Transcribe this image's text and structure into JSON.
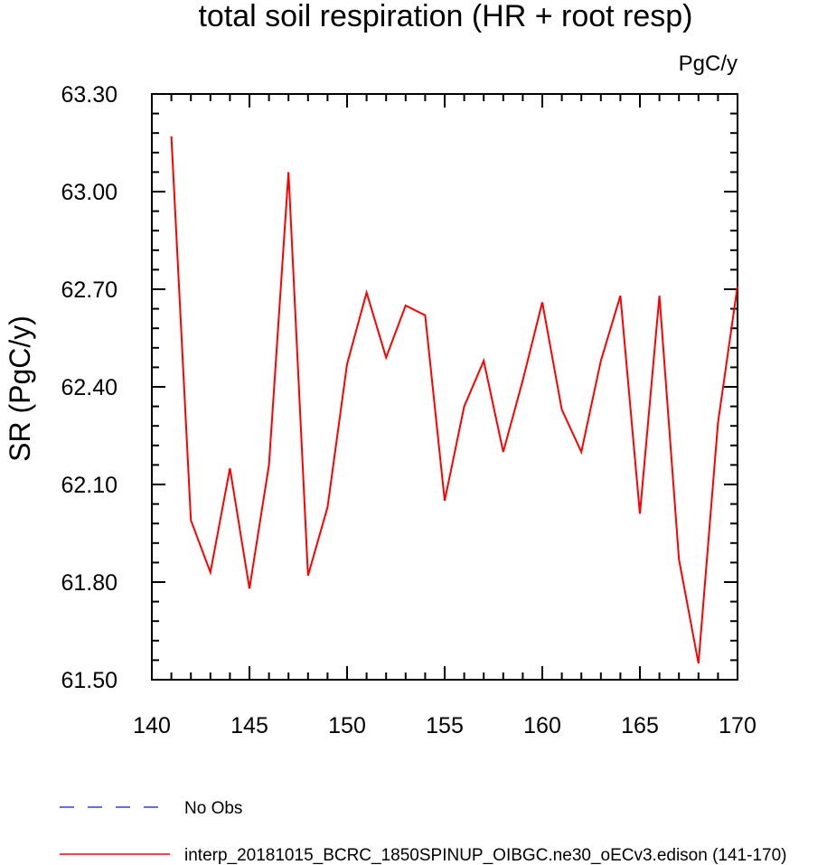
{
  "chart_data": {
    "type": "line",
    "title": "total soil respiration (HR + root resp)",
    "units_label": "PgC/y",
    "xlabel": "",
    "ylabel": "SR  (PgC/y)",
    "xlim": [
      140,
      170
    ],
    "ylim": [
      61.5,
      63.3
    ],
    "xticks": [
      140,
      145,
      150,
      155,
      160,
      165,
      170
    ],
    "yticks": [
      "61.50",
      "61.80",
      "62.10",
      "62.40",
      "62.70",
      "63.00",
      "63.30"
    ],
    "grid": false,
    "legend_position": "bottom",
    "legend": [
      {
        "name": "No Obs",
        "color": "#3b3bd6",
        "style": "dashed"
      },
      {
        "name": "interp_20181015_BCRC_1850SPINUP_OIBGC.ne30_oECv3.edison (141-170)",
        "color": "#ff0000",
        "style": "solid"
      }
    ],
    "series": [
      {
        "name": "interp_20181015_BCRC_1850SPINUP_OIBGC.ne30_oECv3.edison (141-170)",
        "color": "#ff0000",
        "x": [
          141,
          142,
          143,
          144,
          145,
          146,
          147,
          148,
          149,
          150,
          151,
          152,
          153,
          154,
          155,
          156,
          157,
          158,
          159,
          160,
          161,
          162,
          163,
          164,
          165,
          166,
          167,
          168,
          169,
          170
        ],
        "y": [
          63.17,
          61.99,
          61.83,
          62.15,
          61.78,
          62.16,
          63.06,
          61.82,
          62.03,
          62.47,
          62.69,
          62.49,
          62.65,
          62.62,
          62.05,
          62.34,
          62.48,
          62.2,
          62.42,
          62.66,
          62.33,
          62.2,
          62.48,
          62.68,
          62.01,
          62.68,
          61.87,
          61.55,
          62.29,
          62.71
        ]
      }
    ]
  }
}
